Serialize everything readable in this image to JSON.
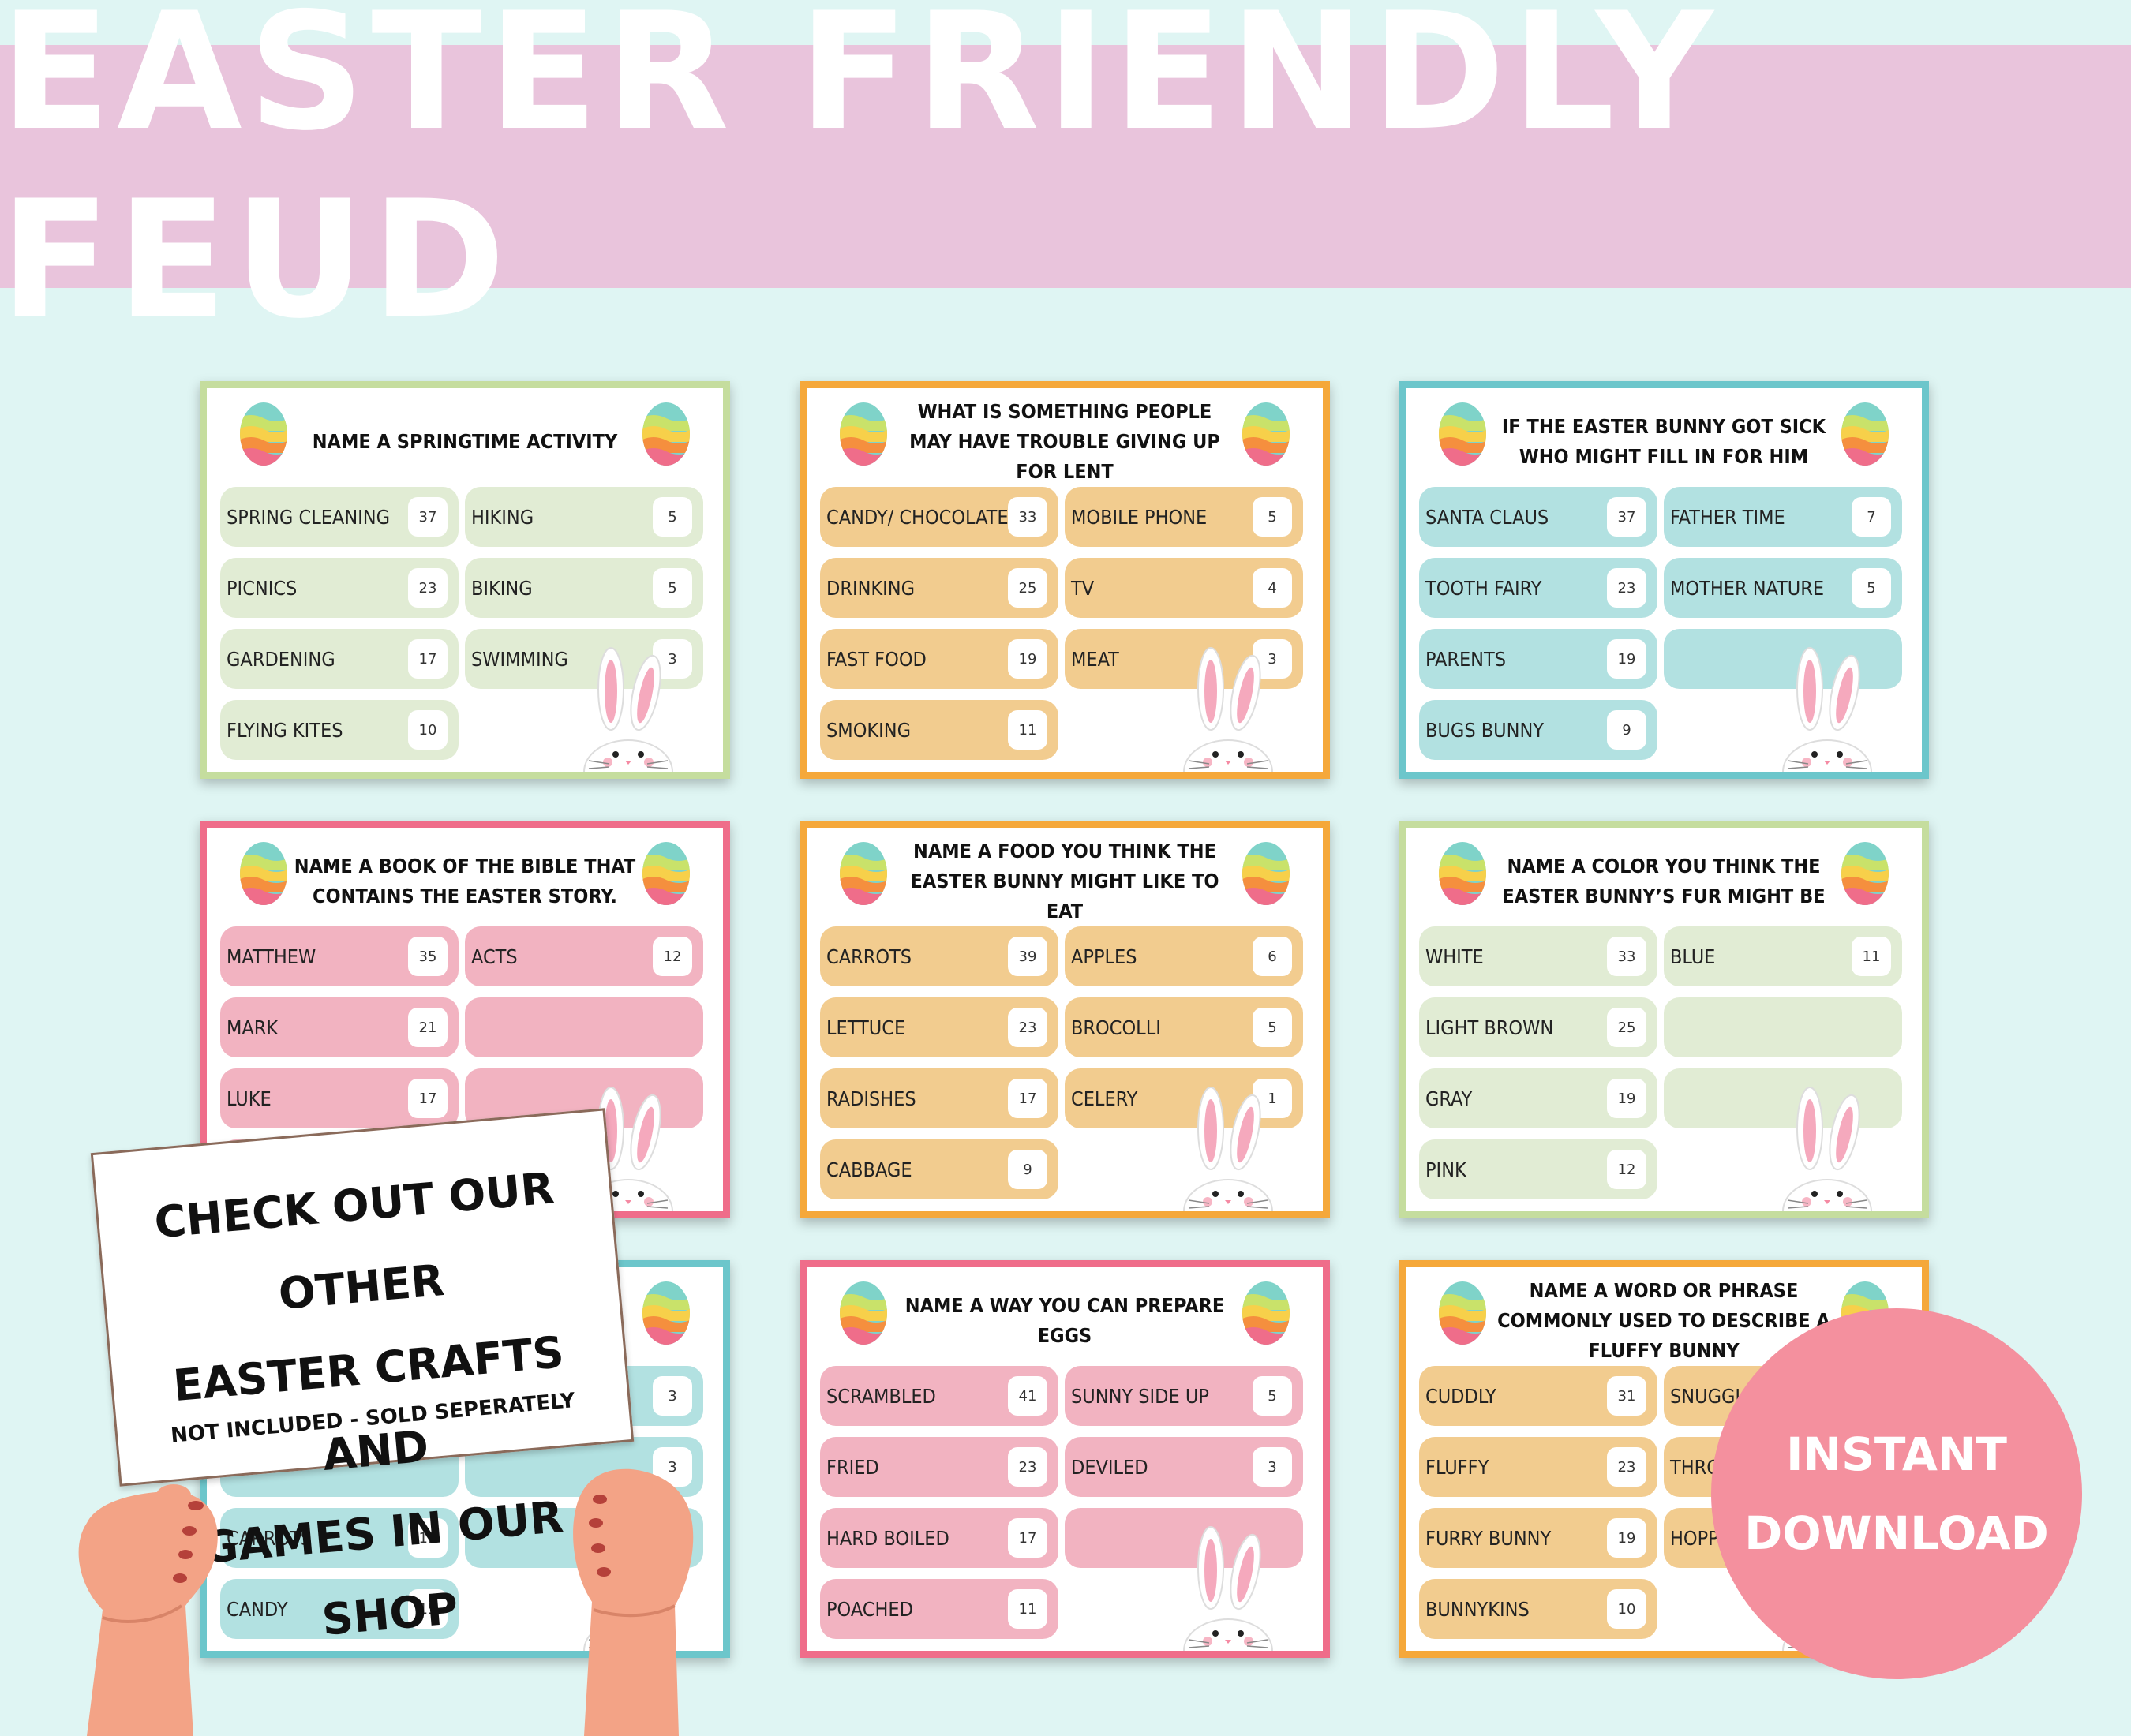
{
  "title": "EASTER FRIENDLY FEUD",
  "colors": {
    "green": "#c5dd9e",
    "greenSlot": "#e1ecd4",
    "orange": "#f5a83a",
    "orangeSlot": "#f2cc8f",
    "teal": "#6cc6cb",
    "tealSlot": "#b2e1e1",
    "pink": "#ef6d8a",
    "pinkSlot": "#f2b3c1"
  },
  "cards": [
    {
      "theme": "green",
      "title": "NAME A SPRINGTIME ACTIVITY",
      "left": [
        [
          "SPRING CLEANING",
          "37"
        ],
        [
          "PICNICS",
          "23"
        ],
        [
          "GARDENING",
          "17"
        ],
        [
          "FLYING KITES",
          "10"
        ]
      ],
      "right": [
        [
          "HIKING",
          "5"
        ],
        [
          "BIKING",
          "5"
        ],
        [
          "SWIMMING",
          "3"
        ]
      ]
    },
    {
      "theme": "orange",
      "title": "WHAT IS SOMETHING PEOPLE MAY HAVE TROUBLE GIVING UP FOR LENT",
      "left": [
        [
          "CANDY/ CHOCOLATE",
          "33"
        ],
        [
          "DRINKING",
          "25"
        ],
        [
          "FAST FOOD",
          "19"
        ],
        [
          "SMOKING",
          "11"
        ]
      ],
      "right": [
        [
          "MOBILE PHONE",
          "5"
        ],
        [
          "TV",
          "4"
        ],
        [
          "MEAT",
          "3"
        ]
      ]
    },
    {
      "theme": "teal",
      "title": "IF THE EASTER BUNNY GOT SICK WHO MIGHT FILL IN FOR HIM",
      "left": [
        [
          "SANTA CLAUS",
          "37"
        ],
        [
          "TOOTH FAIRY",
          "23"
        ],
        [
          "PARENTS",
          "19"
        ],
        [
          "BUGS BUNNY",
          "9"
        ]
      ],
      "right": [
        [
          "FATHER TIME",
          "7"
        ],
        [
          "MOTHER NATURE",
          "5"
        ],
        [
          "",
          ""
        ]
      ]
    },
    {
      "theme": "pink",
      "title": "NAME A BOOK OF THE BIBLE THAT CONTAINS THE EASTER STORY.",
      "left": [
        [
          "MATTHEW",
          "35"
        ],
        [
          "MARK",
          "21"
        ],
        [
          "LUKE",
          "17"
        ],
        [
          "",
          ""
        ]
      ],
      "right": [
        [
          "ACTS",
          "12"
        ],
        [
          "",
          ""
        ],
        [
          "",
          ""
        ]
      ]
    },
    {
      "theme": "orange",
      "title": "NAME A FOOD YOU THINK THE EASTER BUNNY MIGHT LIKE TO EAT",
      "left": [
        [
          "CARROTS",
          "39"
        ],
        [
          "LETTUCE",
          "23"
        ],
        [
          "RADISHES",
          "17"
        ],
        [
          "CABBAGE",
          "9"
        ]
      ],
      "right": [
        [
          "APPLES",
          "6"
        ],
        [
          "BROCOLLI",
          "5"
        ],
        [
          "CELERY",
          "1"
        ]
      ]
    },
    {
      "theme": "green",
      "title": "NAME A COLOR YOU THINK THE EASTER BUNNY’S FUR MIGHT BE",
      "left": [
        [
          "WHITE",
          "33"
        ],
        [
          "LIGHT BROWN",
          "25"
        ],
        [
          "GRAY",
          "19"
        ],
        [
          "PINK",
          "12"
        ]
      ],
      "right": [
        [
          "BLUE",
          "11"
        ],
        [
          "",
          ""
        ],
        [
          "",
          ""
        ]
      ]
    },
    {
      "theme": "teal",
      "title": "",
      "left": [
        [
          "",
          ""
        ],
        [
          "",
          ""
        ],
        [
          "CARROTS",
          "19"
        ],
        [
          "CANDY",
          "15"
        ]
      ],
      "right": [
        [
          "",
          "3"
        ],
        [
          "",
          "3"
        ],
        [
          "",
          ""
        ]
      ]
    },
    {
      "theme": "pink",
      "title": "NAME A WAY YOU CAN PREPARE EGGS",
      "left": [
        [
          "SCRAMBLED",
          "41"
        ],
        [
          "FRIED",
          "23"
        ],
        [
          "HARD BOILED",
          "17"
        ],
        [
          "POACHED",
          "11"
        ]
      ],
      "right": [
        [
          "SUNNY SIDE UP",
          "5"
        ],
        [
          "DEVILED",
          "3"
        ],
        [
          "",
          ""
        ]
      ]
    },
    {
      "theme": "orange",
      "title": "NAME A WORD OR PHRASE COMMONLY USED TO DESCRIBE A FLUFFY BUNNY",
      "left": [
        [
          "CUDDLY",
          "31"
        ],
        [
          "FLUFFY",
          "23"
        ],
        [
          "FURRY BUNNY",
          "19"
        ],
        [
          "BUNNYKINS",
          "10"
        ]
      ],
      "right": [
        [
          "SNUGGLE B",
          ""
        ],
        [
          "THROW",
          ""
        ],
        [
          "HOPPI",
          ""
        ]
      ]
    }
  ],
  "sign": {
    "line1": "CHECK OUT OUR OTHER",
    "line2": "EASTER CRAFTS AND",
    "line3": "GAMES IN OUR SHOP",
    "note": "NOT INCLUDED - SOLD SEPERATELY"
  },
  "badge": {
    "line1": "INSTANT",
    "line2": "DOWNLOAD"
  }
}
